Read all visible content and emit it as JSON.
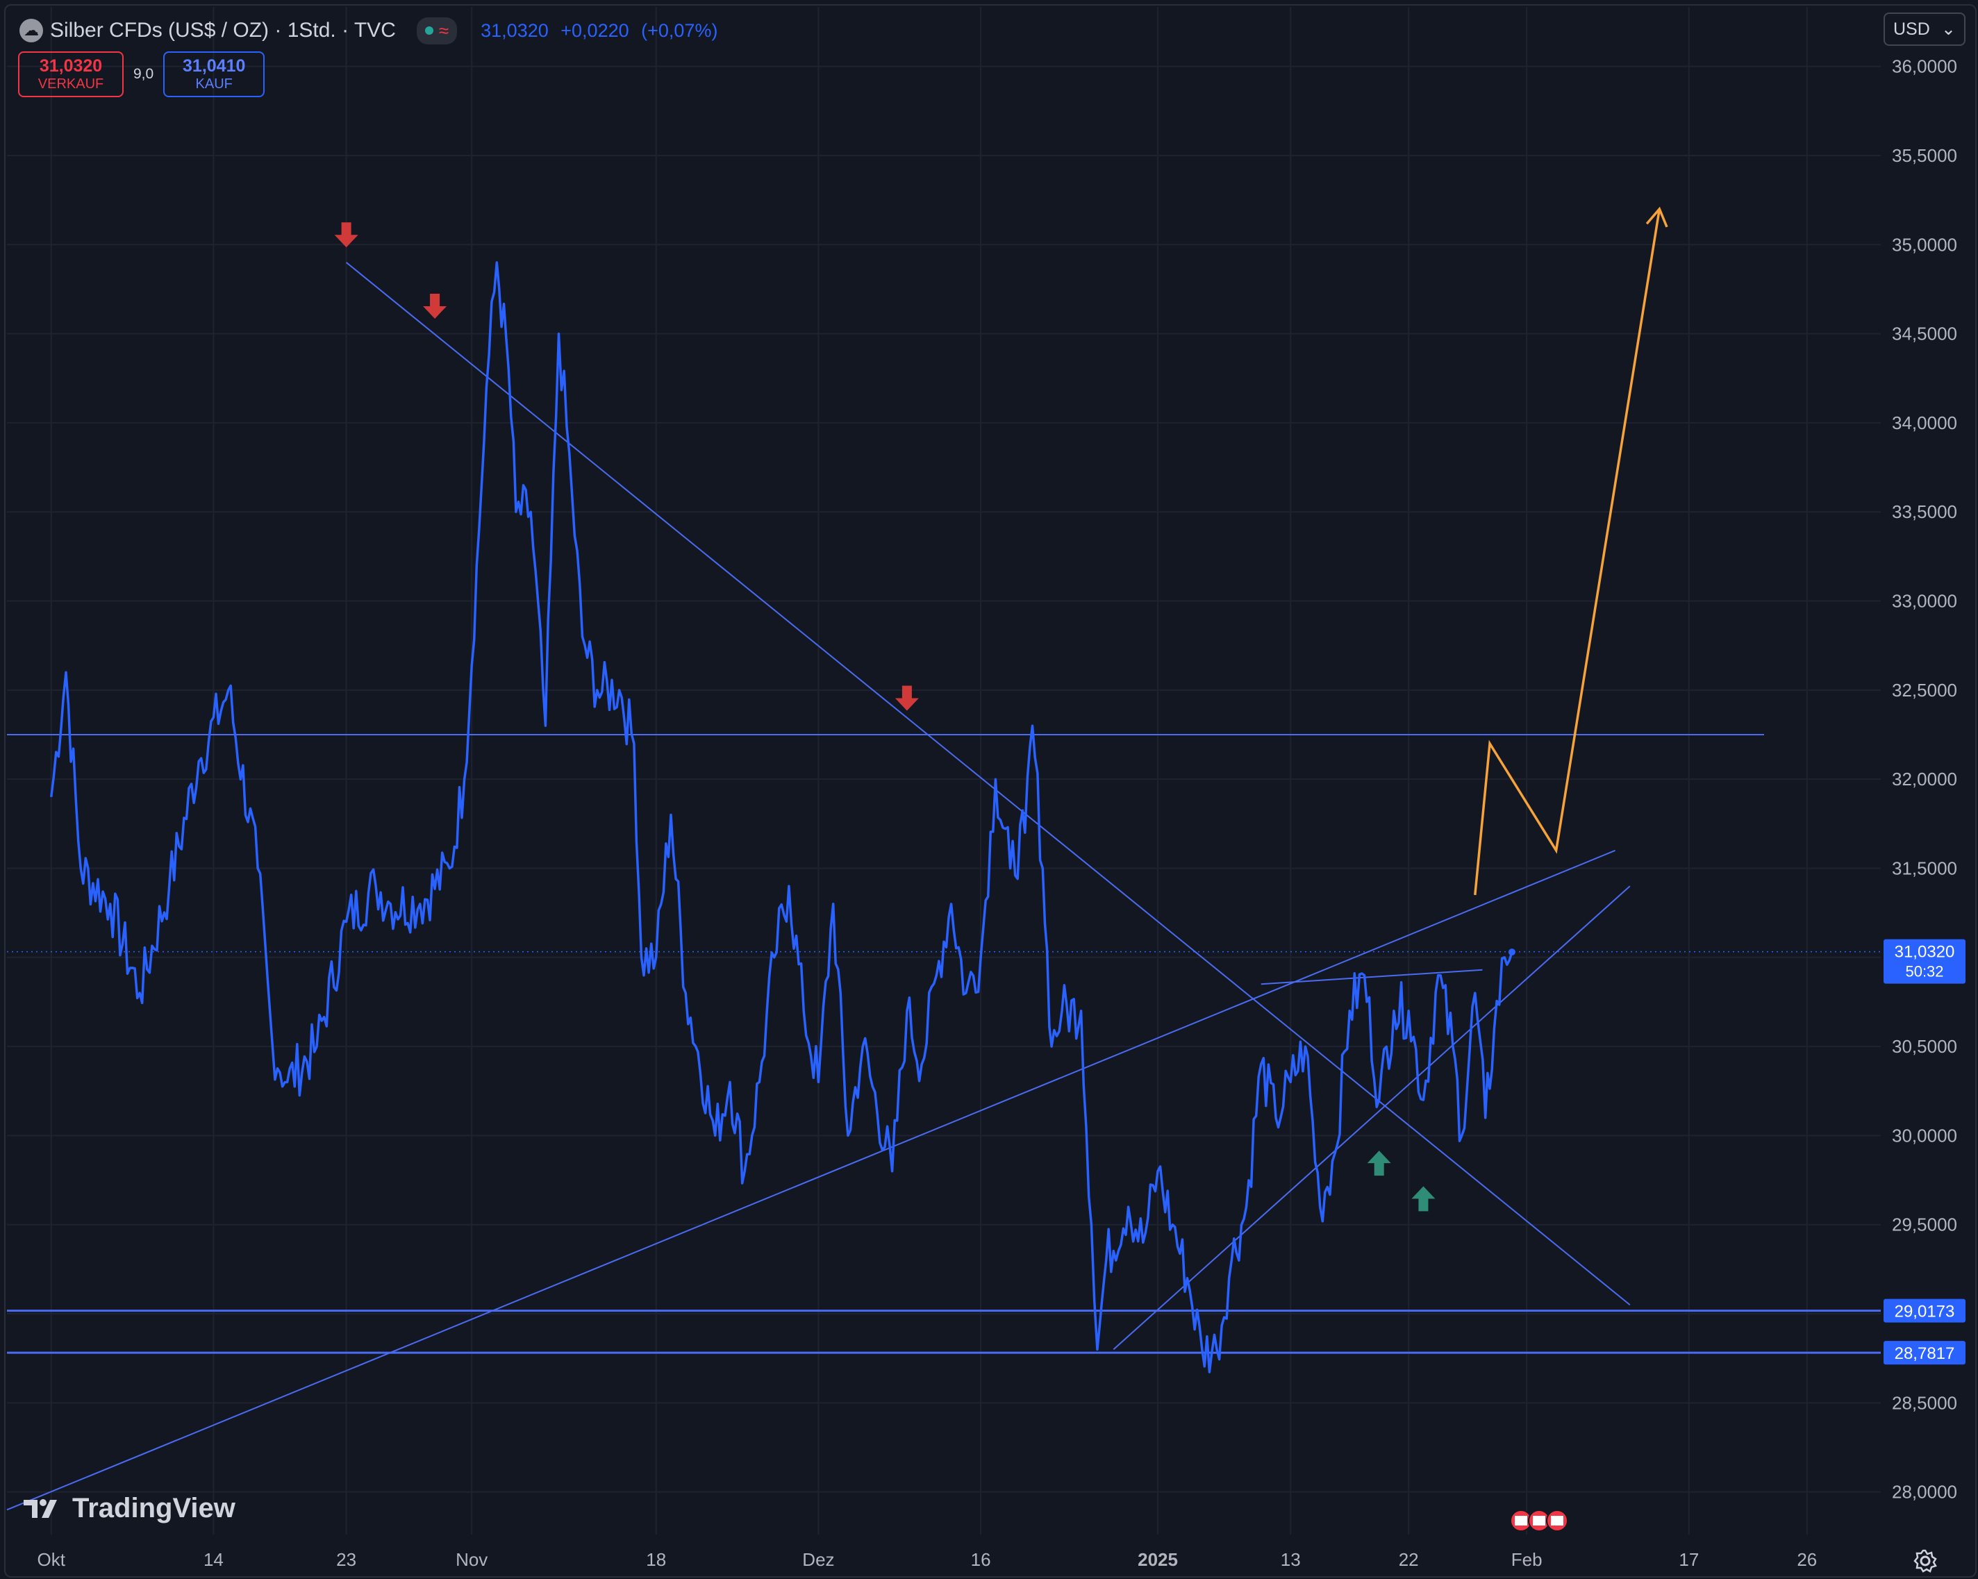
{
  "header": {
    "title": "Silber CFDs (US$ / OZ) · 1Std. · TVC",
    "last": "31,0320",
    "change": "+0,0220",
    "change_pct": "(+0,07%)"
  },
  "quotes": {
    "sell_price": "31,0320",
    "sell_label": "VERKAUF",
    "spread": "9,0",
    "buy_price": "31,0410",
    "buy_label": "KAUF"
  },
  "currency": "USD",
  "logo_text": "TradingView",
  "chart_data": {
    "type": "line",
    "series": [
      {
        "values": [
          [
            0,
            31.9
          ],
          [
            1,
            32.6
          ],
          [
            2,
            31.5
          ],
          [
            4,
            31.3
          ],
          [
            6,
            30.8
          ],
          [
            8,
            31.4
          ],
          [
            10,
            32.1
          ],
          [
            12,
            32.5
          ],
          [
            14,
            31.5
          ],
          [
            15,
            30.5
          ],
          [
            16,
            30.3
          ],
          [
            18,
            30.5
          ],
          [
            20,
            31.2
          ],
          [
            22,
            31.4
          ],
          [
            23,
            31.3
          ],
          [
            25,
            31.3
          ],
          [
            27,
            31.5
          ],
          [
            28,
            32.0
          ],
          [
            29,
            33.4
          ],
          [
            29.5,
            34.2
          ],
          [
            30.2,
            34.9
          ],
          [
            31,
            34.3
          ],
          [
            31.5,
            33.5
          ],
          [
            32.5,
            33.5
          ],
          [
            33.5,
            32.3
          ],
          [
            34.4,
            34.5
          ],
          [
            35.3,
            33.6
          ],
          [
            36,
            32.8
          ],
          [
            37,
            32.5
          ],
          [
            38.5,
            32.5
          ],
          [
            39.5,
            32.2
          ],
          [
            40,
            31.0
          ],
          [
            41,
            31.0
          ],
          [
            42,
            31.8
          ],
          [
            43,
            30.8
          ],
          [
            45,
            30.0
          ],
          [
            46,
            30.3
          ],
          [
            47,
            29.8
          ],
          [
            48,
            30.3
          ],
          [
            49,
            31.0
          ],
          [
            50,
            31.4
          ],
          [
            51,
            30.7
          ],
          [
            52,
            30.3
          ],
          [
            53,
            31.3
          ],
          [
            54,
            30.0
          ],
          [
            55,
            30.5
          ],
          [
            57,
            29.8
          ],
          [
            58,
            30.7
          ],
          [
            59,
            30.4
          ],
          [
            60,
            30.9
          ],
          [
            61,
            31.3
          ],
          [
            62,
            30.8
          ],
          [
            63,
            31.0
          ],
          [
            64,
            32.0
          ],
          [
            65,
            31.5
          ],
          [
            66,
            31.7
          ],
          [
            66.5,
            32.3
          ],
          [
            67.2,
            31.5
          ],
          [
            67.8,
            30.5
          ],
          [
            68.5,
            30.7
          ],
          [
            69.8,
            30.7
          ],
          [
            70.5,
            29.5
          ],
          [
            70.9,
            28.8
          ],
          [
            71.5,
            29.3
          ],
          [
            73,
            29.6
          ],
          [
            74,
            29.4
          ],
          [
            75,
            29.8
          ],
          [
            76,
            29.5
          ],
          [
            77,
            29.2
          ],
          [
            78,
            28.8
          ],
          [
            79,
            28.8
          ],
          [
            80,
            29.3
          ],
          [
            81,
            29.6
          ],
          [
            82,
            30.4
          ],
          [
            83,
            30.1
          ],
          [
            84,
            30.3
          ],
          [
            85,
            30.5
          ],
          [
            86,
            29.6
          ],
          [
            87,
            29.9
          ],
          [
            88,
            30.7
          ],
          [
            89,
            30.9
          ],
          [
            90,
            30.2
          ],
          [
            91,
            30.7
          ],
          [
            92,
            30.7
          ],
          [
            93,
            30.2
          ],
          [
            94,
            30.9
          ],
          [
            95,
            30.5
          ],
          [
            95.6,
            30.0
          ],
          [
            96.5,
            30.8
          ],
          [
            97.2,
            30.1
          ],
          [
            97.8,
            30.6
          ],
          [
            98.5,
            31.0
          ],
          [
            99,
            31.03
          ]
        ]
      }
    ],
    "x_ticks": [
      {
        "x": 0,
        "label": "Okt"
      },
      {
        "x": 11,
        "label": "14"
      },
      {
        "x": 20,
        "label": "23"
      },
      {
        "x": 28.5,
        "label": "Nov"
      },
      {
        "x": 41,
        "label": "18"
      },
      {
        "x": 52,
        "label": "Dez"
      },
      {
        "x": 63,
        "label": "16"
      },
      {
        "x": 75,
        "label": "2025"
      },
      {
        "x": 84,
        "label": "13"
      },
      {
        "x": 92,
        "label": "22"
      },
      {
        "x": 100,
        "label": "Feb"
      },
      {
        "x": 111,
        "label": "17"
      },
      {
        "x": 119,
        "label": "26"
      }
    ],
    "y_ticks": [
      "36,0000",
      "35,5000",
      "35,0000",
      "34,5000",
      "34,0000",
      "33,5000",
      "33,0000",
      "32,5000",
      "32,0000",
      "31,5000",
      "31,0000",
      "30,5000",
      "30,0000",
      "29,5000",
      "29,0000",
      "28,5000",
      "28,0000"
    ],
    "ylim": [
      27.8,
      36.1
    ],
    "xlim": [
      -3,
      124
    ],
    "price_labels": [
      {
        "y": 31.032,
        "label": "31,0320",
        "sub": "50:32"
      },
      {
        "y": 29.0173,
        "label": "29,0173"
      },
      {
        "y": 28.7817,
        "label": "28,7817"
      }
    ],
    "current_price": 31.032,
    "horizontal_lines": [
      32.25,
      29.0173,
      28.7817
    ],
    "trend_lines": [
      [
        [
          20,
          34.9
        ],
        [
          107,
          29.05
        ]
      ],
      [
        [
          -3,
          27.9
        ],
        [
          106,
          31.6
        ]
      ],
      [
        [
          72,
          28.8
        ],
        [
          107,
          31.4
        ]
      ],
      [
        [
          82,
          30.85
        ],
        [
          97,
          30.93
        ]
      ]
    ],
    "forecast_path": [
      [
        96.5,
        31.35
      ],
      [
        97.5,
        32.2
      ],
      [
        102,
        31.6
      ],
      [
        109,
        35.2
      ]
    ],
    "down_arrows": [
      [
        20,
        35.0
      ],
      [
        26,
        34.6
      ],
      [
        58,
        32.4
      ]
    ],
    "up_arrows": [
      [
        90,
        29.9
      ],
      [
        93,
        29.7
      ]
    ],
    "grid": true,
    "colors": {
      "background": "#131722",
      "grid": "#1f2330",
      "line": "#2962ff",
      "drawing": "#4a6cf2",
      "forecast": "#f7a33b",
      "arrow_down": "#d23a3a",
      "arrow_up": "#2e8c77",
      "label_bg": "#2962ff",
      "axis_text": "#b2b5be"
    }
  }
}
